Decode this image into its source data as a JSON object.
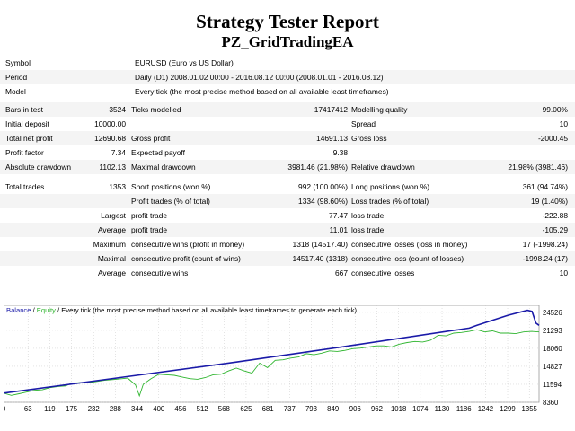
{
  "report": {
    "title": "Strategy Tester Report",
    "subtitle": "PZ_GridTradingEA"
  },
  "info": [
    {
      "label": "Symbol",
      "value": "EURUSD (Euro vs US Dollar)"
    },
    {
      "label": "Period",
      "value": "Daily (D1) 2008.01.02 00:00 - 2016.08.12 00:00 (2008.01.01 - 2016.08.12)"
    },
    {
      "label": "Model",
      "value": "Every tick (the most precise method based on all available least timeframes)"
    }
  ],
  "grid_rows": [
    {
      "l1": "Bars in test",
      "v1": "3524",
      "l2": "Ticks modelled",
      "v2": "17417412",
      "l3": "Modelling quality",
      "v3": "99.00%"
    },
    {
      "l1": "Initial deposit",
      "v1": "10000.00",
      "l2": "",
      "v2": "",
      "l3": "Spread",
      "v3": "10"
    },
    {
      "l1": "Total net profit",
      "v1": "12690.68",
      "l2": "Gross profit",
      "v2": "14691.13",
      "l3": "Gross loss",
      "v3": "-2000.45"
    },
    {
      "l1": "Profit factor",
      "v1": "7.34",
      "l2": "Expected payoff",
      "v2": "9.38",
      "l3": "",
      "v3": ""
    },
    {
      "l1": "Absolute drawdown",
      "v1": "1102.13",
      "l2": "Maximal drawdown",
      "v2": "3981.46 (21.98%)",
      "l3": "Relative drawdown",
      "v3": "21.98% (3981.46)"
    }
  ],
  "trade_rows": [
    {
      "l1": "Total trades",
      "v1": "1353",
      "l2": "Short positions (won %)",
      "v2": "992 (100.00%)",
      "l3": "Long positions (won %)",
      "v3": "361 (94.74%)"
    },
    {
      "l1": "",
      "v1": "",
      "l2": "Profit trades (% of total)",
      "v2": "1334 (98.60%)",
      "l3": "Loss trades (% of total)",
      "v3": "19 (1.40%)"
    },
    {
      "l1": "",
      "v1": "Largest",
      "l2": "profit trade",
      "v2": "77.47",
      "l3": "loss trade",
      "v3": "-222.88"
    },
    {
      "l1": "",
      "v1": "Average",
      "l2": "profit trade",
      "v2": "11.01",
      "l3": "loss trade",
      "v3": "-105.29"
    },
    {
      "l1": "",
      "v1": "Maximum",
      "l2": "consecutive wins (profit in money)",
      "v2": "1318 (14517.40)",
      "l3": "consecutive losses (loss in money)",
      "v3": "17 (-1998.24)"
    },
    {
      "l1": "",
      "v1": "Maximal",
      "l2": "consecutive profit (count of wins)",
      "v2": "14517.40 (1318)",
      "l3": "consecutive loss (count of losses)",
      "v3": "-1998.24 (17)"
    },
    {
      "l1": "",
      "v1": "Average",
      "l2": "consecutive wins",
      "v2": "667",
      "l3": "consecutive losses",
      "v3": "10"
    }
  ],
  "colors": {
    "balance": "#1a1aa8",
    "equity": "#2fb52f",
    "grid": "#c8c8c8",
    "frame": "#9a9a9a"
  },
  "chart_data": {
    "type": "line",
    "legend_balance": "Balance",
    "legend_sep1": " / ",
    "legend_equity": "Equity",
    "legend_rest": " / Every tick (the most precise method based on all available least timeframes to generate each tick)",
    "x_ticks": [
      "0",
      "63",
      "119",
      "175",
      "232",
      "288",
      "344",
      "400",
      "456",
      "512",
      "568",
      "625",
      "681",
      "737",
      "793",
      "849",
      "906",
      "962",
      "1018",
      "1074",
      "1130",
      "1186",
      "1242",
      "1299",
      "1355"
    ],
    "y_ticks": [
      "24526",
      "21293",
      "18060",
      "14827",
      "11594",
      "8360"
    ],
    "xlim": [
      0,
      1380
    ],
    "ylim": [
      8360,
      25800
    ],
    "series": [
      {
        "name": "Balance",
        "x": [
          0,
          300,
          600,
          900,
          1200,
          1220,
          1300,
          1350,
          1362,
          1372,
          1380
        ],
        "y": [
          10000,
          12800,
          15600,
          18600,
          21700,
          22200,
          24000,
          24900,
          24700,
          22600,
          22200
        ]
      },
      {
        "name": "Equity",
        "x": [
          0,
          20,
          40,
          60,
          80,
          100,
          120,
          140,
          160,
          175,
          200,
          230,
          260,
          290,
          320,
          340,
          350,
          360,
          380,
          400,
          420,
          440,
          460,
          480,
          500,
          520,
          540,
          560,
          580,
          600,
          620,
          640,
          660,
          680,
          700,
          720,
          740,
          760,
          780,
          800,
          820,
          840,
          860,
          880,
          900,
          920,
          940,
          960,
          980,
          1000,
          1020,
          1040,
          1060,
          1080,
          1100,
          1120,
          1140,
          1160,
          1180,
          1200,
          1220,
          1240,
          1260,
          1280,
          1300,
          1320,
          1340,
          1360,
          1380
        ],
        "y": [
          10000,
          9600,
          9900,
          10200,
          10500,
          10600,
          11000,
          11200,
          11300,
          11800,
          11900,
          12000,
          12300,
          12500,
          12700,
          11500,
          9500,
          11600,
          12600,
          13400,
          13300,
          13200,
          12900,
          12600,
          12500,
          12800,
          13300,
          13400,
          14000,
          14500,
          14000,
          13600,
          15400,
          14600,
          15900,
          16000,
          16300,
          16500,
          17100,
          16900,
          17200,
          17600,
          17500,
          17700,
          18000,
          18100,
          18300,
          18500,
          18500,
          18300,
          18800,
          19100,
          19300,
          19200,
          19500,
          20400,
          20300,
          20800,
          20900,
          21100,
          21400,
          21000,
          21200,
          20800,
          20800,
          20700,
          21000,
          21100,
          21000
        ]
      }
    ]
  }
}
